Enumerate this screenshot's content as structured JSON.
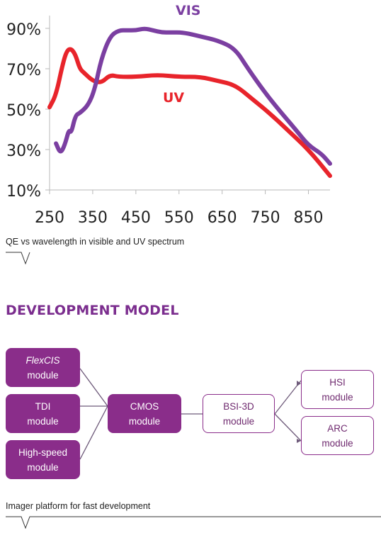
{
  "chart_data": {
    "type": "line",
    "title": "",
    "xlabel": "",
    "ylabel": "",
    "xlim": [
      250,
      900
    ],
    "ylim": [
      10,
      95
    ],
    "x_ticks": [
      "250",
      "350",
      "450",
      "550",
      "650",
      "750",
      "850"
    ],
    "y_ticks": [
      "10%",
      "30%",
      "50%",
      "70%",
      "90%"
    ],
    "grid": false,
    "series": [
      {
        "name": "VIS",
        "color": "#7b3fa1",
        "x": [
          265,
          275,
          285,
          295,
          300,
          310,
          320,
          340,
          355,
          370,
          390,
          410,
          430,
          450,
          470,
          490,
          510,
          530,
          560,
          600,
          640,
          680,
          710,
          750,
          780,
          820,
          850,
          880,
          900
        ],
        "y": [
          33,
          28,
          32,
          40,
          38,
          47,
          48,
          52,
          60,
          75,
          86,
          89,
          89,
          89,
          90,
          89,
          88,
          88,
          88,
          86,
          84,
          80,
          70,
          58,
          50,
          40,
          32,
          28,
          23
        ]
      },
      {
        "name": "UV",
        "color": "#e8242b",
        "x": [
          250,
          265,
          280,
          290,
          300,
          310,
          320,
          330,
          350,
          370,
          390,
          410,
          450,
          500,
          550,
          600,
          640,
          680,
          720,
          760,
          800,
          850,
          900
        ],
        "y": [
          51,
          57,
          72,
          79,
          80,
          77,
          70,
          68,
          64,
          63,
          67,
          66,
          66,
          67,
          66,
          66,
          64,
          62,
          55,
          48,
          40,
          30,
          17
        ]
      }
    ],
    "annotations": [
      "VIS",
      "UV"
    ]
  },
  "captions": {
    "chart": "QE vs wavelength in visible and UV spectrum",
    "diagram": "Imager platform for fast development"
  },
  "section_heading": "DEVELOPMENT MODEL",
  "diagram": {
    "inputs": [
      {
        "line1": "FlexCIS",
        "line1_style": "italic",
        "line2": "module"
      },
      {
        "line1": "TDI",
        "line2": "module"
      },
      {
        "line1": "High-speed",
        "line2": "module"
      }
    ],
    "center": {
      "line1": "CMOS",
      "line2": "module"
    },
    "middle": {
      "line1": "BSI-3D",
      "line2": "module"
    },
    "outputs": [
      {
        "line1": "HSI",
        "line2": "module"
      },
      {
        "line1": "ARC",
        "line2": "module"
      }
    ],
    "colors": {
      "fill": "#8a2d8a",
      "outline": "#8a2d8a",
      "connector": "#6e5a7a"
    }
  }
}
